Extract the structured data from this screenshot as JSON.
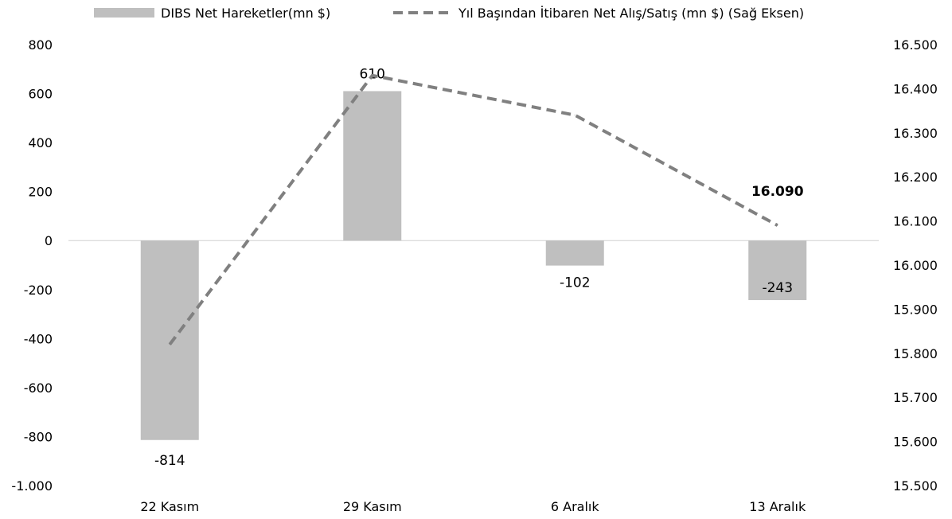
{
  "chart_data": {
    "type": "bar",
    "categories": [
      "22 Kasım",
      "29 Kasım",
      "6 Aralık",
      "13 Aralık"
    ],
    "series": [
      {
        "name": "DIBS Net Hareketler(mn $)",
        "type": "bar",
        "axis": "left",
        "values": [
          -814,
          610,
          -102,
          -243
        ],
        "labels": [
          "-814",
          "610",
          "-102",
          "-243"
        ],
        "color": "#bfbfbf"
      },
      {
        "name": "Yıl Başından İtibaren Net Alış/Satış (mn $) (Sağ Eksen)",
        "type": "line",
        "axis": "right",
        "style": "dashed",
        "values": [
          15820,
          16430,
          16340,
          16090
        ],
        "end_label": "16.090",
        "color": "#808080"
      }
    ],
    "y_left": {
      "ylim": [
        -1000,
        800
      ],
      "ticks": [
        800,
        600,
        400,
        200,
        0,
        -200,
        -400,
        -600,
        -800,
        -1000
      ],
      "tick_labels": [
        "800",
        "600",
        "400",
        "200",
        "0",
        "-200",
        "-400",
        "-600",
        "-800",
        "-1.000"
      ]
    },
    "y_right": {
      "ylim": [
        15500,
        16500
      ],
      "ticks": [
        16500,
        16400,
        16300,
        16200,
        16100,
        16000,
        15900,
        15800,
        15700,
        15600,
        15500
      ],
      "tick_labels": [
        "16.500",
        "16.400",
        "16.300",
        "16.200",
        "16.100",
        "16.000",
        "15.900",
        "15.800",
        "15.700",
        "15.600",
        "15.500"
      ]
    },
    "legend": "top",
    "grid": false
  }
}
